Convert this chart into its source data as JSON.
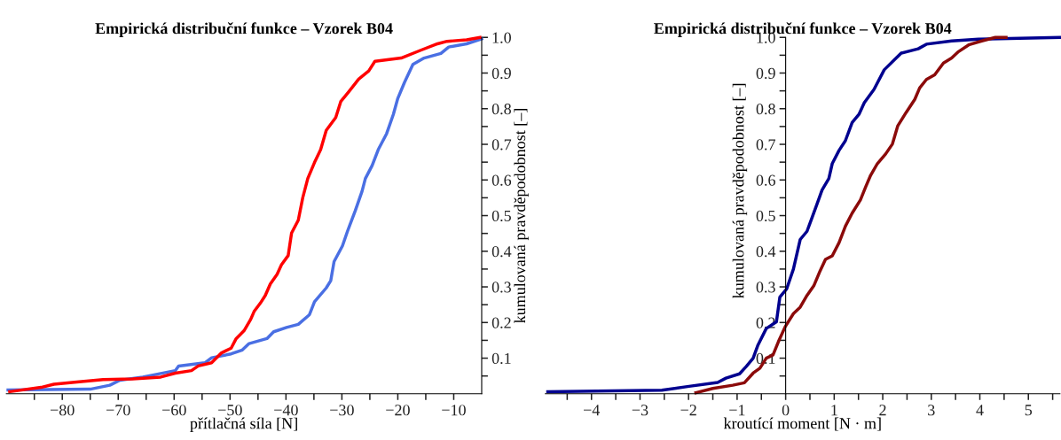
{
  "chart_data": [
    {
      "type": "line",
      "title": "Empirická distribuční funkce – Vzorek B04",
      "xlabel": "přítlačná síla [N]",
      "ylabel": "kumulovaná pravděpodobnost [–]",
      "xlim": [
        -90,
        -5
      ],
      "ylim": [
        0,
        1
      ],
      "xticks": [
        {
          "value": -85,
          "label": null
        },
        {
          "value": -80,
          "label": "−80"
        },
        {
          "value": -75,
          "label": null
        },
        {
          "value": -70,
          "label": "−70"
        },
        {
          "value": -65,
          "label": null
        },
        {
          "value": -60,
          "label": "−60"
        },
        {
          "value": -55,
          "label": null
        },
        {
          "value": -50,
          "label": "−50"
        },
        {
          "value": -45,
          "label": null
        },
        {
          "value": -40,
          "label": "−40"
        },
        {
          "value": -35,
          "label": null
        },
        {
          "value": -30,
          "label": "−30"
        },
        {
          "value": -25,
          "label": null
        },
        {
          "value": -20,
          "label": "−20"
        },
        {
          "value": -15,
          "label": null
        },
        {
          "value": -10,
          "label": "−10"
        }
      ],
      "yticks": [
        {
          "value": 0.05,
          "label": null
        },
        {
          "value": 0.1,
          "label": "0.1"
        },
        {
          "value": 0.15,
          "label": null
        },
        {
          "value": 0.2,
          "label": "0.2"
        },
        {
          "value": 0.25,
          "label": null
        },
        {
          "value": 0.3,
          "label": "0.3"
        },
        {
          "value": 0.35,
          "label": null
        },
        {
          "value": 0.4,
          "label": "0.4"
        },
        {
          "value": 0.45,
          "label": null
        },
        {
          "value": 0.5,
          "label": "0.5"
        },
        {
          "value": 0.55,
          "label": null
        },
        {
          "value": 0.6,
          "label": "0.6"
        },
        {
          "value": 0.65,
          "label": null
        },
        {
          "value": 0.7,
          "label": "0.7"
        },
        {
          "value": 0.75,
          "label": null
        },
        {
          "value": 0.8,
          "label": "0.8"
        },
        {
          "value": 0.85,
          "label": null
        },
        {
          "value": 0.9,
          "label": "0.9"
        },
        {
          "value": 0.95,
          "label": null
        },
        {
          "value": 1.0,
          "label": "1.0"
        }
      ],
      "grid": false,
      "legend": false,
      "marker": "none",
      "line_style": "solid",
      "series": [
        {
          "color": "#4a6fe3",
          "x": [
            -89.7,
            -75.0,
            -71.5,
            -69.7,
            -65.6,
            -59.8,
            -59.2,
            -54.5,
            -53.3,
            -49.8,
            -47.8,
            -46.6,
            -43.4,
            -42.2,
            -39.9,
            -37.8,
            -35.8,
            -34.9,
            -32.8,
            -32.0,
            -31.4,
            -29.9,
            -29.0,
            -27.6,
            -26.4,
            -25.8,
            -24.6,
            -23.5,
            -22.0,
            -20.8,
            -20.0,
            -18.8,
            -17.3,
            -15.3,
            -12.3,
            -10.9,
            -7.7,
            -5.0
          ],
          "values": [
            0.011,
            0.013,
            0.024,
            0.038,
            0.047,
            0.065,
            0.078,
            0.087,
            0.101,
            0.112,
            0.123,
            0.141,
            0.155,
            0.174,
            0.186,
            0.195,
            0.222,
            0.258,
            0.297,
            0.317,
            0.371,
            0.415,
            0.456,
            0.514,
            0.568,
            0.604,
            0.64,
            0.685,
            0.73,
            0.784,
            0.829,
            0.874,
            0.924,
            0.942,
            0.955,
            0.973,
            0.982,
            0.996
          ]
        },
        {
          "color": "#ff0000",
          "x": [
            -89.4,
            -83.8,
            -81.5,
            -77.4,
            -72.7,
            -67.4,
            -62.4,
            -59.8,
            -56.9,
            -55.7,
            -53.3,
            -51.6,
            -49.8,
            -48.9,
            -47.5,
            -46.3,
            -45.7,
            -44.6,
            -43.7,
            -42.8,
            -41.6,
            -40.8,
            -39.6,
            -39.0,
            -37.8,
            -37.0,
            -36.1,
            -34.9,
            -33.8,
            -32.8,
            -31.1,
            -30.2,
            -28.8,
            -27.0,
            -25.2,
            -24.1,
            -19.4,
            -15.9,
            -12.9,
            -11.2,
            -7.7,
            -5.3
          ],
          "values": [
            0.006,
            0.018,
            0.027,
            0.033,
            0.04,
            0.042,
            0.047,
            0.058,
            0.065,
            0.078,
            0.087,
            0.114,
            0.128,
            0.155,
            0.177,
            0.209,
            0.231,
            0.254,
            0.276,
            0.308,
            0.335,
            0.362,
            0.388,
            0.451,
            0.487,
            0.55,
            0.604,
            0.649,
            0.685,
            0.739,
            0.775,
            0.82,
            0.847,
            0.883,
            0.906,
            0.933,
            0.942,
            0.964,
            0.982,
            0.989,
            0.993,
            1.0
          ]
        }
      ]
    },
    {
      "type": "line",
      "title": "Empirická distribuční funkce – Vzorek B04",
      "xlabel": "kroutící moment [N · m]",
      "ylabel": "kumulovaná pravděpodobnost [–]",
      "xlim": [
        -4.95,
        5.65
      ],
      "ylim": [
        0,
        1
      ],
      "xticks": [
        {
          "value": -4.5,
          "label": null
        },
        {
          "value": -4,
          "label": "−4"
        },
        {
          "value": -3.5,
          "label": null
        },
        {
          "value": -3,
          "label": "−3"
        },
        {
          "value": -2.5,
          "label": null
        },
        {
          "value": -2,
          "label": "−2"
        },
        {
          "value": -1.5,
          "label": null
        },
        {
          "value": -1,
          "label": "−1"
        },
        {
          "value": -0.5,
          "label": null
        },
        {
          "value": 0,
          "label": "0"
        },
        {
          "value": 0.5,
          "label": null
        },
        {
          "value": 1,
          "label": "1"
        },
        {
          "value": 1.5,
          "label": null
        },
        {
          "value": 2,
          "label": "2"
        },
        {
          "value": 2.5,
          "label": null
        },
        {
          "value": 3,
          "label": "3"
        },
        {
          "value": 3.5,
          "label": null
        },
        {
          "value": 4,
          "label": "4"
        },
        {
          "value": 4.5,
          "label": null
        },
        {
          "value": 5,
          "label": "5"
        },
        {
          "value": 5.5,
          "label": null
        }
      ],
      "yticks": [
        {
          "value": 0.05,
          "label": null
        },
        {
          "value": 0.1,
          "label": "0.1"
        },
        {
          "value": 0.15,
          "label": null
        },
        {
          "value": 0.2,
          "label": "0.2"
        },
        {
          "value": 0.25,
          "label": null
        },
        {
          "value": 0.3,
          "label": "0.3"
        },
        {
          "value": 0.35,
          "label": null
        },
        {
          "value": 0.4,
          "label": "0.4"
        },
        {
          "value": 0.45,
          "label": null
        },
        {
          "value": 0.5,
          "label": "0.5"
        },
        {
          "value": 0.55,
          "label": null
        },
        {
          "value": 0.6,
          "label": "0.6"
        },
        {
          "value": 0.65,
          "label": null
        },
        {
          "value": 0.7,
          "label": "0.7"
        },
        {
          "value": 0.75,
          "label": null
        },
        {
          "value": 0.8,
          "label": "0.8"
        },
        {
          "value": 0.85,
          "label": null
        },
        {
          "value": 0.9,
          "label": "0.9"
        },
        {
          "value": 0.95,
          "label": null
        },
        {
          "value": 1.0,
          "label": "1.0"
        }
      ],
      "grid": false,
      "legend": false,
      "marker": "none",
      "line_style": "solid",
      "series": [
        {
          "color": "#00008f",
          "x": [
            -4.9,
            -2.55,
            -1.99,
            -1.4,
            -1.23,
            -0.95,
            -0.81,
            -0.67,
            -0.57,
            -0.4,
            -0.19,
            -0.12,
            0.02,
            0.16,
            0.3,
            0.44,
            0.54,
            0.64,
            0.75,
            0.89,
            0.96,
            1.1,
            1.23,
            1.37,
            1.51,
            1.62,
            1.82,
            2.03,
            2.24,
            2.38,
            2.73,
            2.9,
            3.42,
            3.97,
            5.64
          ],
          "values": [
            0.006,
            0.01,
            0.021,
            0.032,
            0.044,
            0.056,
            0.077,
            0.1,
            0.137,
            0.183,
            0.202,
            0.271,
            0.294,
            0.35,
            0.433,
            0.456,
            0.493,
            0.53,
            0.572,
            0.604,
            0.646,
            0.683,
            0.71,
            0.761,
            0.784,
            0.817,
            0.854,
            0.909,
            0.937,
            0.956,
            0.968,
            0.981,
            0.99,
            0.995,
            1.0
          ]
        },
        {
          "color": "#8b0a0a",
          "x": [
            -1.85,
            -1.5,
            -1.09,
            -0.85,
            -0.67,
            -0.53,
            -0.4,
            -0.26,
            -0.15,
            -0.01,
            0.16,
            0.3,
            0.44,
            0.58,
            0.71,
            0.82,
            0.96,
            1.1,
            1.23,
            1.37,
            1.54,
            1.65,
            1.75,
            1.89,
            2.06,
            2.2,
            2.31,
            2.48,
            2.66,
            2.76,
            2.9,
            3.07,
            3.25,
            3.42,
            3.56,
            3.77,
            4.04,
            4.32,
            4.54
          ],
          "values": [
            0.003,
            0.015,
            0.024,
            0.031,
            0.058,
            0.072,
            0.1,
            0.109,
            0.146,
            0.188,
            0.225,
            0.243,
            0.276,
            0.303,
            0.345,
            0.377,
            0.387,
            0.424,
            0.47,
            0.507,
            0.544,
            0.581,
            0.613,
            0.646,
            0.673,
            0.701,
            0.752,
            0.789,
            0.826,
            0.858,
            0.882,
            0.895,
            0.928,
            0.942,
            0.96,
            0.979,
            0.99,
            1.0,
            1.0
          ]
        }
      ]
    }
  ]
}
